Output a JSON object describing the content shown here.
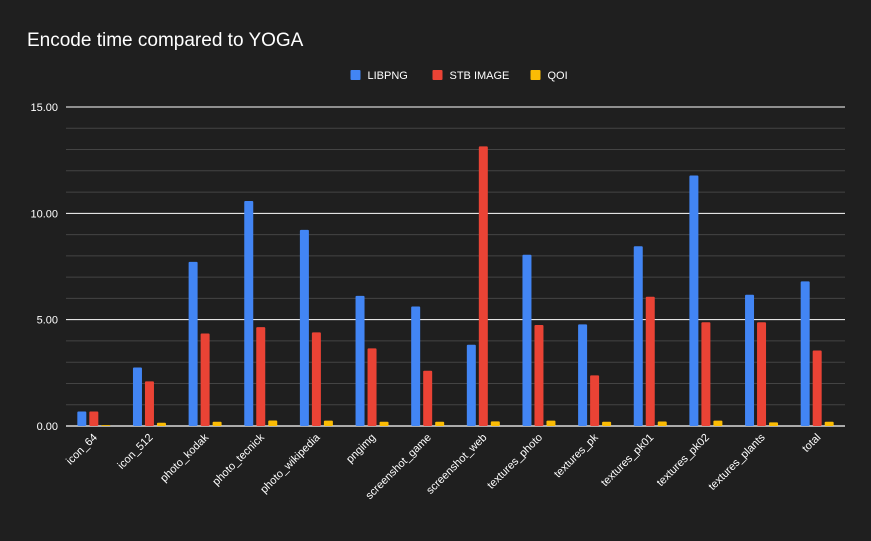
{
  "chart_data": {
    "type": "bar",
    "title": "Encode time compared to YOGA",
    "xlabel": "",
    "ylabel": "",
    "ylim": [
      0,
      15
    ],
    "yticks": [
      0,
      5,
      10,
      15
    ],
    "ytick_labels": [
      "0.00",
      "5.00",
      "10.00",
      "15.00"
    ],
    "grid": true,
    "legend_position": "top-center",
    "categories": [
      "icon_64",
      "icon_512",
      "photo_kodak",
      "photo_tecnick",
      "photo_wikipedia",
      "pngimg",
      "screenshot_game",
      "screenshot_web",
      "textures_photo",
      "textures_pk",
      "textures_pk01",
      "textures_pk02",
      "textures_plants",
      "total"
    ],
    "series": [
      {
        "name": "LIBPNG",
        "color": "#4285f4",
        "values": [
          0.68,
          2.75,
          7.72,
          10.58,
          9.22,
          6.12,
          5.62,
          3.82,
          8.05,
          4.78,
          8.45,
          11.78,
          6.17,
          6.8
        ]
      },
      {
        "name": "STB IMAGE",
        "color": "#ea4335",
        "values": [
          0.68,
          2.1,
          4.35,
          4.65,
          4.4,
          3.65,
          2.6,
          13.15,
          4.75,
          2.38,
          6.08,
          4.88,
          4.88,
          3.55
        ]
      },
      {
        "name": "QOI",
        "color": "#fbbc04",
        "values": [
          0.04,
          0.15,
          0.2,
          0.26,
          0.25,
          0.2,
          0.2,
          0.22,
          0.25,
          0.2,
          0.21,
          0.25,
          0.17,
          0.2
        ]
      }
    ]
  }
}
